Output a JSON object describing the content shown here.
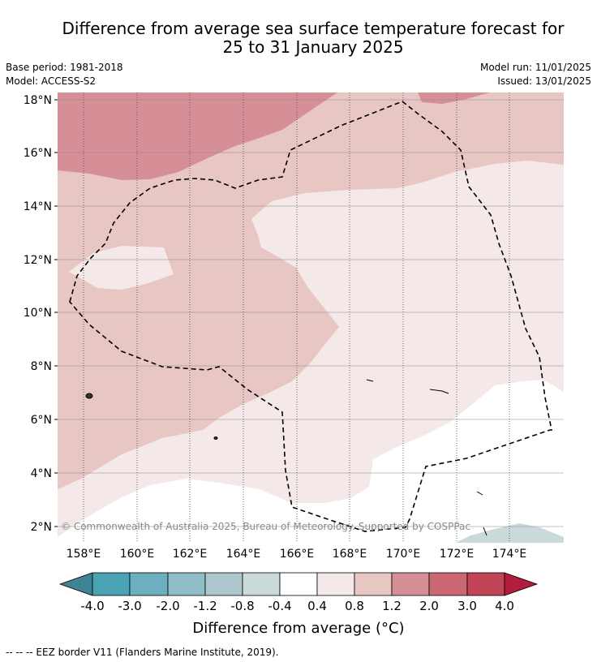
{
  "title": {
    "line1": "Difference from average sea surface temperature forecast for",
    "line2": "25 to 31 January 2025"
  },
  "meta": {
    "base_period": "Base period: 1981-2018",
    "model": "Model: ACCESS-S2",
    "model_run": "Model run: 11/01/2025",
    "issued": "Issued: 13/01/2025"
  },
  "map": {
    "copyright": "© Commonwealth of Australia 2025, Bureau of Meteorology. Supported by COSPPac",
    "lat_labels": [
      "18°N",
      "16°N",
      "14°N",
      "12°N",
      "10°N",
      "8°N",
      "6°N",
      "4°N",
      "2°N"
    ],
    "lon_labels": [
      "158°E",
      "160°E",
      "162°E",
      "164°E",
      "166°E",
      "168°E",
      "170°E",
      "172°E",
      "174°E"
    ]
  },
  "legend": {
    "tick_labels": [
      "-4.0",
      "-3.0",
      "-2.0",
      "-1.2",
      "-0.8",
      "-0.4",
      "0.4",
      "0.8",
      "1.2",
      "2.0",
      "3.0",
      "4.0"
    ],
    "title": "Difference from average (°C)",
    "colors": [
      "#3e8494",
      "#4aa2b4",
      "#6cb0bf",
      "#8fbcc7",
      "#abc7cc",
      "#cad9da",
      "#ffffff",
      "#f4e8e8",
      "#e8c6c4",
      "#d68f97",
      "#cb6674",
      "#c14356",
      "#b21d3d"
    ]
  },
  "footer": {
    "eez_note": "--  --  -- EEZ border V11 (Flanders Marine Institute, 2019)."
  }
}
